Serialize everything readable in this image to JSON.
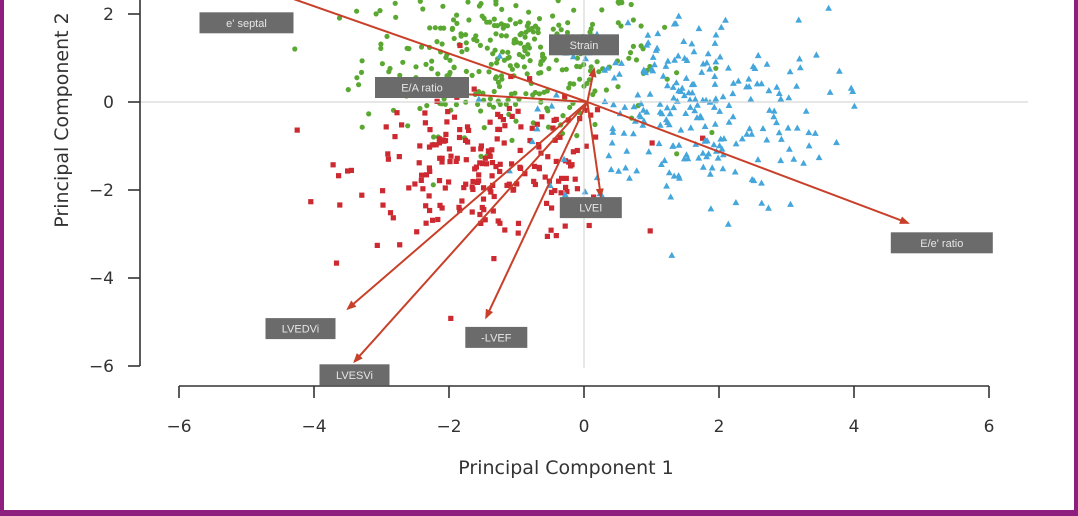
{
  "chart_data": {
    "type": "scatter",
    "title": "",
    "xlabel": "Principal Component 1",
    "ylabel": "Principal Component 2",
    "xlim": [
      -6,
      6.2
    ],
    "ylim": [
      -6,
      2.3
    ],
    "xticks": [
      -6,
      -4,
      -2,
      0,
      2,
      4,
      6
    ],
    "yticks": [
      -6,
      -4,
      -2,
      0,
      2
    ],
    "xtick_labels": [
      "−6",
      "−4",
      "−2",
      "0",
      "2",
      "4",
      "6"
    ],
    "ytick_labels": [
      "−6",
      "−4",
      "−2",
      "0",
      "2"
    ],
    "colors": {
      "green": "#5aa832",
      "red": "#cc2a30",
      "blue": "#45a6db",
      "arrow": "#c9402a",
      "label_box": "#6b6b6b",
      "frame": "#8e1f7e"
    },
    "loadings": [
      {
        "label": "e' septal",
        "x": -4.6,
        "y": 2.5,
        "label_x": -5.0,
        "label_y": 1.8
      },
      {
        "label": "Strain",
        "x": 0.15,
        "y": 0.75,
        "label_x": 0.0,
        "label_y": 1.3
      },
      {
        "label": "E/A ratio",
        "x": -3.0,
        "y": 0.3,
        "label_x": -2.4,
        "label_y": 0.33
      },
      {
        "label": "LVEDVi",
        "x": -3.5,
        "y": -4.7,
        "label_x": -4.2,
        "label_y": -5.15
      },
      {
        "label": "LVESVi",
        "x": -3.4,
        "y": -5.9,
        "label_x": -3.4,
        "label_y": -6.2
      },
      {
        "label": "-LVEF",
        "x": -1.45,
        "y": -4.9,
        "label_x": -1.3,
        "label_y": -5.35
      },
      {
        "label": "LVEI",
        "x": 0.25,
        "y": -2.15,
        "label_x": 0.1,
        "label_y": -2.4
      },
      {
        "label": "E/e' ratio",
        "x": 4.8,
        "y": -2.75,
        "label_x": 5.3,
        "label_y": -3.2
      }
    ],
    "series": []
  }
}
